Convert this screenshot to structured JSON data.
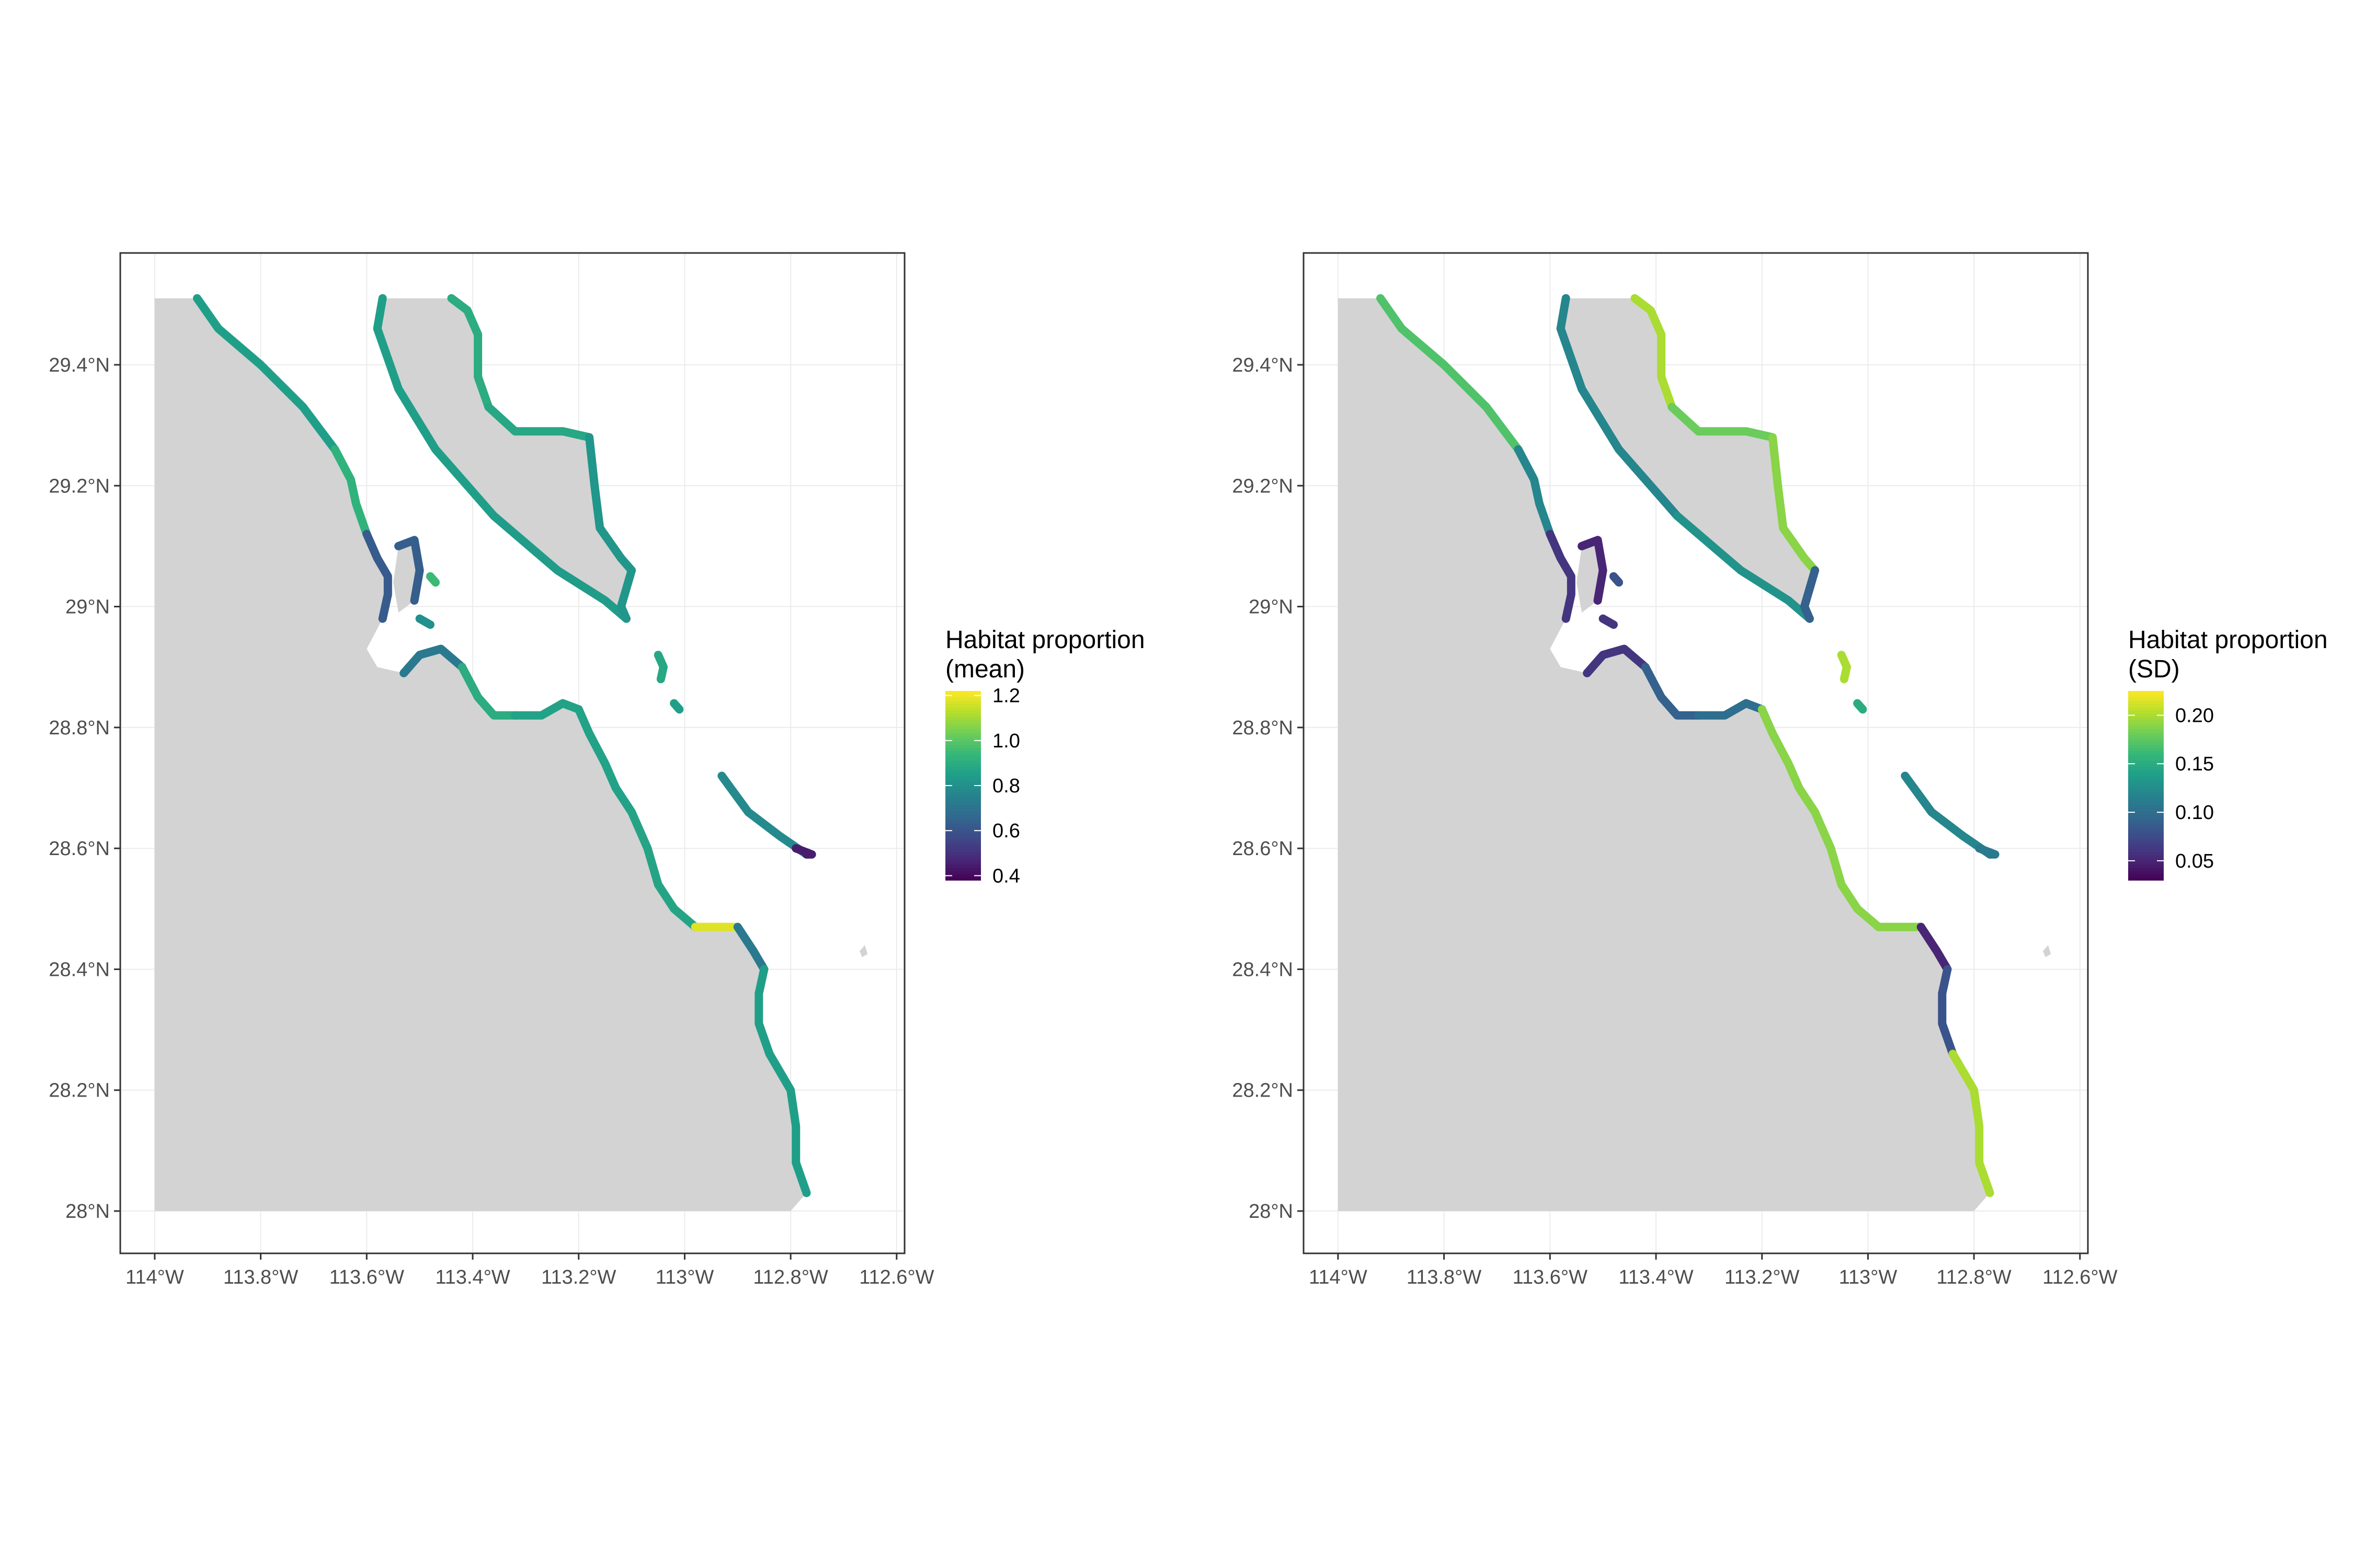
{
  "map": {
    "background": "#ffffff",
    "land_color": "#d3d3d3",
    "panel_border_color": "#333333",
    "grid_color": "#ebebeb",
    "lon_range": [
      -114.065,
      -112.585
    ],
    "lat_range": [
      27.93,
      29.585
    ],
    "x_ticks": [
      {
        "lon": -114.0,
        "label": "114°W"
      },
      {
        "lon": -113.8,
        "label": "113.8°W"
      },
      {
        "lon": -113.6,
        "label": "113.6°W"
      },
      {
        "lon": -113.4,
        "label": "113.4°W"
      },
      {
        "lon": -113.2,
        "label": "113.2°W"
      },
      {
        "lon": -113.0,
        "label": "113°W"
      },
      {
        "lon": -112.8,
        "label": "112.8°W"
      },
      {
        "lon": -112.6,
        "label": "112.6°W"
      }
    ],
    "y_ticks": [
      {
        "lat": 28.0,
        "label": "28°N"
      },
      {
        "lat": 28.2,
        "label": "28.2°N"
      },
      {
        "lat": 28.4,
        "label": "28.4°N"
      },
      {
        "lat": 28.6,
        "label": "28.6°N"
      },
      {
        "lat": 28.8,
        "label": "28.8°N"
      },
      {
        "lat": 29.0,
        "label": "29°N"
      },
      {
        "lat": 29.2,
        "label": "29.2°N"
      },
      {
        "lat": 29.4,
        "label": "29.4°N"
      }
    ],
    "land_polygons": {
      "mainland": [
        [
          -114.0,
          29.51
        ],
        [
          -113.92,
          29.51
        ],
        [
          -113.88,
          29.46
        ],
        [
          -113.8,
          29.4
        ],
        [
          -113.72,
          29.33
        ],
        [
          -113.66,
          29.26
        ],
        [
          -113.63,
          29.21
        ],
        [
          -113.62,
          29.17
        ],
        [
          -113.6,
          29.12
        ],
        [
          -113.58,
          29.08
        ],
        [
          -113.56,
          29.05
        ],
        [
          -113.56,
          29.02
        ],
        [
          -113.57,
          28.98
        ],
        [
          -113.6,
          28.93
        ],
        [
          -113.58,
          28.9
        ],
        [
          -113.53,
          28.89
        ],
        [
          -113.5,
          28.92
        ],
        [
          -113.46,
          28.93
        ],
        [
          -113.42,
          28.9
        ],
        [
          -113.39,
          28.85
        ],
        [
          -113.36,
          28.82
        ],
        [
          -113.32,
          28.82
        ],
        [
          -113.27,
          28.82
        ],
        [
          -113.23,
          28.84
        ],
        [
          -113.2,
          28.83
        ],
        [
          -113.18,
          28.79
        ],
        [
          -113.15,
          28.74
        ],
        [
          -113.13,
          28.7
        ],
        [
          -113.1,
          28.66
        ],
        [
          -113.07,
          28.6
        ],
        [
          -113.05,
          28.54
        ],
        [
          -113.02,
          28.5
        ],
        [
          -112.98,
          28.47
        ],
        [
          -112.94,
          28.47
        ],
        [
          -112.9,
          28.47
        ],
        [
          -112.87,
          28.43
        ],
        [
          -112.85,
          28.4
        ],
        [
          -112.86,
          28.36
        ],
        [
          -112.86,
          28.31
        ],
        [
          -112.84,
          28.26
        ],
        [
          -112.8,
          28.2
        ],
        [
          -112.79,
          28.14
        ],
        [
          -112.79,
          28.08
        ],
        [
          -112.77,
          28.03
        ],
        [
          -112.8,
          28.0
        ],
        [
          -114.0,
          28.0
        ]
      ],
      "angel_island": [
        [
          -113.57,
          29.51
        ],
        [
          -113.44,
          29.51
        ],
        [
          -113.41,
          29.49
        ],
        [
          -113.39,
          29.45
        ],
        [
          -113.39,
          29.38
        ],
        [
          -113.37,
          29.33
        ],
        [
          -113.32,
          29.29
        ],
        [
          -113.23,
          29.29
        ],
        [
          -113.18,
          29.28
        ],
        [
          -113.17,
          29.2
        ],
        [
          -113.16,
          29.13
        ],
        [
          -113.12,
          29.08
        ],
        [
          -113.1,
          29.06
        ],
        [
          -113.12,
          29.0
        ],
        [
          -113.11,
          28.98
        ],
        [
          -113.15,
          29.01
        ],
        [
          -113.24,
          29.06
        ],
        [
          -113.36,
          29.15
        ],
        [
          -113.47,
          29.26
        ],
        [
          -113.54,
          29.36
        ],
        [
          -113.58,
          29.46
        ]
      ],
      "small_island_w": [
        [
          -113.54,
          29.1
        ],
        [
          -113.51,
          29.11
        ],
        [
          -113.5,
          29.06
        ],
        [
          -113.51,
          29.01
        ],
        [
          -113.54,
          28.99
        ],
        [
          -113.55,
          29.04
        ]
      ],
      "small_island_e": [
        [
          -112.93,
          28.72
        ],
        [
          -112.88,
          28.66
        ],
        [
          -112.82,
          28.62
        ],
        [
          -112.77,
          28.59
        ],
        [
          -112.76,
          28.59
        ],
        [
          -112.79,
          28.6
        ],
        [
          -112.83,
          28.63
        ],
        [
          -112.89,
          28.67
        ],
        [
          -112.94,
          28.73
        ],
        [
          -112.95,
          28.74
        ]
      ],
      "islet": [
        [
          -112.67,
          28.43
        ],
        [
          -112.66,
          28.44
        ],
        [
          -112.655,
          28.425
        ],
        [
          -112.665,
          28.42
        ]
      ]
    },
    "coast_segments": [
      {
        "points": [
          [
            -113.92,
            29.51
          ],
          [
            -113.88,
            29.46
          ],
          [
            -113.8,
            29.4
          ],
          [
            -113.72,
            29.33
          ],
          [
            -113.66,
            29.26
          ]
        ],
        "mean": 0.85,
        "sd": 0.17
      },
      {
        "points": [
          [
            -113.66,
            29.26
          ],
          [
            -113.63,
            29.21
          ],
          [
            -113.62,
            29.17
          ],
          [
            -113.6,
            29.12
          ]
        ],
        "mean": 0.92,
        "sd": 0.12
      },
      {
        "points": [
          [
            -113.6,
            29.12
          ],
          [
            -113.58,
            29.08
          ],
          [
            -113.56,
            29.05
          ],
          [
            -113.56,
            29.02
          ],
          [
            -113.57,
            28.98
          ]
        ],
        "mean": 0.62,
        "sd": 0.06
      },
      {
        "points": [
          [
            -113.53,
            28.89
          ],
          [
            -113.5,
            28.92
          ],
          [
            -113.46,
            28.93
          ],
          [
            -113.42,
            28.9
          ]
        ],
        "mean": 0.72,
        "sd": 0.06
      },
      {
        "points": [
          [
            -113.42,
            28.9
          ],
          [
            -113.39,
            28.85
          ],
          [
            -113.36,
            28.82
          ],
          [
            -113.32,
            28.82
          ]
        ],
        "mean": 0.9,
        "sd": 0.09
      },
      {
        "points": [
          [
            -113.32,
            28.82
          ],
          [
            -113.27,
            28.82
          ],
          [
            -113.23,
            28.84
          ],
          [
            -113.2,
            28.83
          ]
        ],
        "mean": 0.86,
        "sd": 0.1
      },
      {
        "points": [
          [
            -113.2,
            28.83
          ],
          [
            -113.18,
            28.79
          ],
          [
            -113.15,
            28.74
          ],
          [
            -113.13,
            28.7
          ],
          [
            -113.1,
            28.66
          ]
        ],
        "mean": 0.86,
        "sd": 0.19
      },
      {
        "points": [
          [
            -113.1,
            28.66
          ],
          [
            -113.07,
            28.6
          ],
          [
            -113.05,
            28.54
          ],
          [
            -113.02,
            28.5
          ],
          [
            -112.98,
            28.47
          ]
        ],
        "mean": 0.87,
        "sd": 0.19
      },
      {
        "points": [
          [
            -112.98,
            28.47
          ],
          [
            -112.94,
            28.47
          ],
          [
            -112.9,
            28.47
          ]
        ],
        "mean": 1.18,
        "sd": 0.19
      },
      {
        "points": [
          [
            -112.9,
            28.47
          ],
          [
            -112.87,
            28.43
          ],
          [
            -112.85,
            28.4
          ]
        ],
        "mean": 0.72,
        "sd": 0.05
      },
      {
        "points": [
          [
            -112.85,
            28.4
          ],
          [
            -112.86,
            28.36
          ],
          [
            -112.86,
            28.31
          ],
          [
            -112.84,
            28.26
          ]
        ],
        "mean": 0.85,
        "sd": 0.08
      },
      {
        "points": [
          [
            -112.84,
            28.26
          ],
          [
            -112.8,
            28.2
          ],
          [
            -112.79,
            28.14
          ],
          [
            -112.79,
            28.08
          ],
          [
            -112.77,
            28.03
          ]
        ],
        "mean": 0.85,
        "sd": 0.2
      },
      {
        "points": [
          [
            -113.57,
            29.51
          ],
          [
            -113.58,
            29.46
          ],
          [
            -113.54,
            29.36
          ],
          [
            -113.47,
            29.26
          ],
          [
            -113.36,
            29.15
          ]
        ],
        "mean": 0.85,
        "sd": 0.12
      },
      {
        "points": [
          [
            -113.36,
            29.15
          ],
          [
            -113.24,
            29.06
          ],
          [
            -113.15,
            29.01
          ],
          [
            -113.11,
            28.98
          ]
        ],
        "mean": 0.84,
        "sd": 0.13
      },
      {
        "points": [
          [
            -113.44,
            29.51
          ],
          [
            -113.41,
            29.49
          ],
          [
            -113.39,
            29.45
          ],
          [
            -113.39,
            29.38
          ],
          [
            -113.37,
            29.33
          ]
        ],
        "mean": 0.9,
        "sd": 0.2
      },
      {
        "points": [
          [
            -113.37,
            29.33
          ],
          [
            -113.32,
            29.29
          ],
          [
            -113.23,
            29.29
          ],
          [
            -113.18,
            29.28
          ]
        ],
        "mean": 0.88,
        "sd": 0.18
      },
      {
        "points": [
          [
            -113.18,
            29.28
          ],
          [
            -113.17,
            29.2
          ],
          [
            -113.16,
            29.13
          ],
          [
            -113.12,
            29.08
          ],
          [
            -113.1,
            29.06
          ]
        ],
        "mean": 0.82,
        "sd": 0.19
      },
      {
        "points": [
          [
            -113.1,
            29.06
          ],
          [
            -113.12,
            29.0
          ],
          [
            -113.11,
            28.98
          ]
        ],
        "mean": 0.82,
        "sd": 0.09
      },
      {
        "points": [
          [
            -112.93,
            28.72
          ],
          [
            -112.88,
            28.66
          ],
          [
            -112.82,
            28.62
          ],
          [
            -112.77,
            28.59
          ]
        ],
        "mean": 0.78,
        "sd": 0.12
      },
      {
        "points": [
          [
            -112.77,
            28.59
          ],
          [
            -112.76,
            28.59
          ],
          [
            -112.79,
            28.6
          ]
        ],
        "mean": 0.45,
        "sd": 0.11
      },
      {
        "points": [
          [
            -113.54,
            29.1
          ],
          [
            -113.51,
            29.11
          ],
          [
            -113.5,
            29.06
          ],
          [
            -113.51,
            29.01
          ]
        ],
        "mean": 0.63,
        "sd": 0.05
      },
      {
        "points": [
          [
            -113.05,
            28.92
          ],
          [
            -113.04,
            28.9
          ],
          [
            -113.045,
            28.88
          ]
        ],
        "mean": 0.88,
        "sd": 0.2
      },
      {
        "points": [
          [
            -113.02,
            28.84
          ],
          [
            -113.01,
            28.83
          ]
        ],
        "mean": 0.85,
        "sd": 0.15
      },
      {
        "points": [
          [
            -113.5,
            28.98
          ],
          [
            -113.48,
            28.97
          ]
        ],
        "mean": 0.8,
        "sd": 0.06
      },
      {
        "points": [
          [
            -113.48,
            29.05
          ],
          [
            -113.47,
            29.04
          ]
        ],
        "mean": 0.95,
        "sd": 0.08
      }
    ]
  },
  "panels": [
    {
      "variable": "mean",
      "legend_title_line1": "Habitat proportion",
      "legend_title_line2": "(mean)",
      "legend_min": 0.38,
      "legend_max": 1.22,
      "legend_breaks": [
        {
          "value": 0.4,
          "label": "0.4"
        },
        {
          "value": 0.6,
          "label": "0.6"
        },
        {
          "value": 0.8,
          "label": "0.8"
        },
        {
          "value": 1.0,
          "label": "1.0"
        },
        {
          "value": 1.2,
          "label": "1.2"
        }
      ]
    },
    {
      "variable": "sd",
      "legend_title_line1": "Habitat proportion",
      "legend_title_line2": "(SD)",
      "legend_min": 0.03,
      "legend_max": 0.225,
      "legend_breaks": [
        {
          "value": 0.05,
          "label": "0.05"
        },
        {
          "value": 0.1,
          "label": "0.10"
        },
        {
          "value": 0.15,
          "label": "0.15"
        },
        {
          "value": 0.2,
          "label": "0.20"
        }
      ]
    }
  ],
  "colormap": {
    "name": "viridis",
    "stops": [
      "#440154",
      "#482878",
      "#3e4989",
      "#31688e",
      "#26828e",
      "#1f9e89",
      "#35b779",
      "#6ece58",
      "#b5de2b",
      "#fde725"
    ]
  }
}
